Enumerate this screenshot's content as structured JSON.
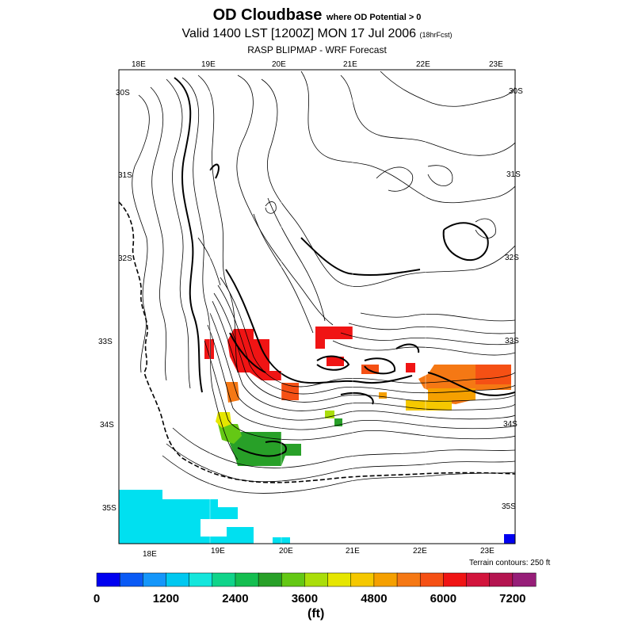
{
  "header": {
    "title_main": "OD Cloudbase",
    "title_sub": "where OD Potential > 0",
    "valid_text": "Valid 1400 LST [1200Z] MON 17 Jul 2006",
    "forecast_tag": "(18hrFcst)",
    "model_text": "RASP BLIPMAP - WRF Forecast"
  },
  "map": {
    "top_lon_labels": [
      "18E",
      "19E",
      "20E",
      "21E",
      "22E",
      "23E"
    ],
    "bottom_lon_labels": [
      "18E",
      "19E",
      "20E",
      "21E",
      "22E",
      "23E"
    ],
    "left_lat_labels": [
      "30S",
      "31S",
      "32S",
      "33S",
      "34S",
      "35S"
    ],
    "right_lat_labels": [
      "30S",
      "31S",
      "32S",
      "33S",
      "34S",
      "35S"
    ],
    "terrain_note": "Terrain contours: 250 ft"
  },
  "colorbar": {
    "colors": [
      "#0000f0",
      "#0a5af5",
      "#1496fa",
      "#00c8f0",
      "#14e6dc",
      "#10d48a",
      "#14be50",
      "#28a028",
      "#64c814",
      "#aade0a",
      "#e6e600",
      "#f5c800",
      "#f5a000",
      "#f57814",
      "#f55014",
      "#f01414",
      "#d2143c",
      "#b41450",
      "#961e78"
    ],
    "tick_labels": [
      "0",
      "1200",
      "2400",
      "3600",
      "4800",
      "6000",
      "7200"
    ],
    "units": "(ft)"
  }
}
